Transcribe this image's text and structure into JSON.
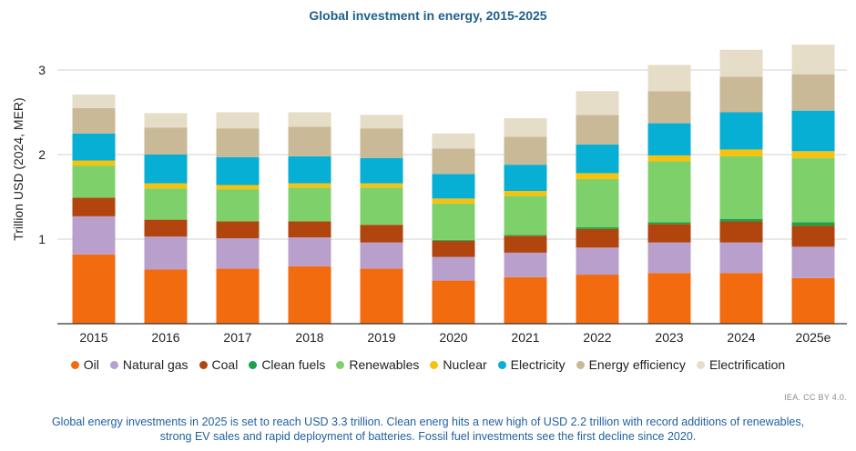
{
  "chart_data": {
    "type": "bar",
    "stacked": true,
    "title": "Global investment in energy, 2015-2025",
    "xlabel": "",
    "ylabel": "Trillion USD (2024, MER)",
    "ylim": [
      0,
      3.3
    ],
    "yticks": [
      1,
      2,
      3
    ],
    "grid": "horizontal",
    "legend_position": "bottom",
    "categories": [
      "2015",
      "2016",
      "2017",
      "2018",
      "2019",
      "2020",
      "2021",
      "2022",
      "2023",
      "2024",
      "2025e"
    ],
    "series": [
      {
        "name": "Oil",
        "color": "#f26b0f",
        "values": [
          0.82,
          0.64,
          0.65,
          0.68,
          0.65,
          0.51,
          0.55,
          0.58,
          0.6,
          0.6,
          0.54
        ]
      },
      {
        "name": "Natural gas",
        "color": "#b9a0cc",
        "values": [
          0.45,
          0.39,
          0.36,
          0.34,
          0.31,
          0.28,
          0.29,
          0.32,
          0.36,
          0.36,
          0.37
        ]
      },
      {
        "name": "Coal",
        "color": "#b1450d",
        "values": [
          0.22,
          0.2,
          0.2,
          0.19,
          0.21,
          0.19,
          0.2,
          0.22,
          0.22,
          0.25,
          0.25
        ]
      },
      {
        "name": "Clean fuels",
        "color": "#1aa34a",
        "values": [
          0.0,
          0.0,
          0.0,
          0.0,
          0.0,
          0.01,
          0.01,
          0.02,
          0.02,
          0.03,
          0.04
        ]
      },
      {
        "name": "Renewables",
        "color": "#7ed06b",
        "values": [
          0.38,
          0.37,
          0.38,
          0.4,
          0.44,
          0.43,
          0.46,
          0.57,
          0.72,
          0.74,
          0.76
        ]
      },
      {
        "name": "Nuclear",
        "color": "#f7c10e",
        "values": [
          0.06,
          0.06,
          0.05,
          0.05,
          0.05,
          0.06,
          0.06,
          0.07,
          0.07,
          0.08,
          0.08
        ]
      },
      {
        "name": "Electricity",
        "color": "#06afd3",
        "values": [
          0.32,
          0.34,
          0.33,
          0.32,
          0.3,
          0.29,
          0.31,
          0.34,
          0.38,
          0.44,
          0.48
        ]
      },
      {
        "name": "Energy efficiency",
        "color": "#c9b996",
        "values": [
          0.3,
          0.32,
          0.34,
          0.35,
          0.35,
          0.3,
          0.33,
          0.35,
          0.38,
          0.42,
          0.43
        ]
      },
      {
        "name": "Electrification",
        "color": "#e5ddc8",
        "values": [
          0.16,
          0.17,
          0.19,
          0.17,
          0.16,
          0.18,
          0.22,
          0.28,
          0.31,
          0.32,
          0.35
        ]
      }
    ]
  },
  "credit": "IEA. CC BY 4.0.",
  "caption_line1": "Global energy investments in 2025 is set to reach USD 3.3 trillion. Clean energ hits a new high of USD 2.2 trillion with record additions of renewables,",
  "caption_line2": "strong EV sales and rapid deployment of batteries. Fossil fuel investments see the first decline since 2020."
}
